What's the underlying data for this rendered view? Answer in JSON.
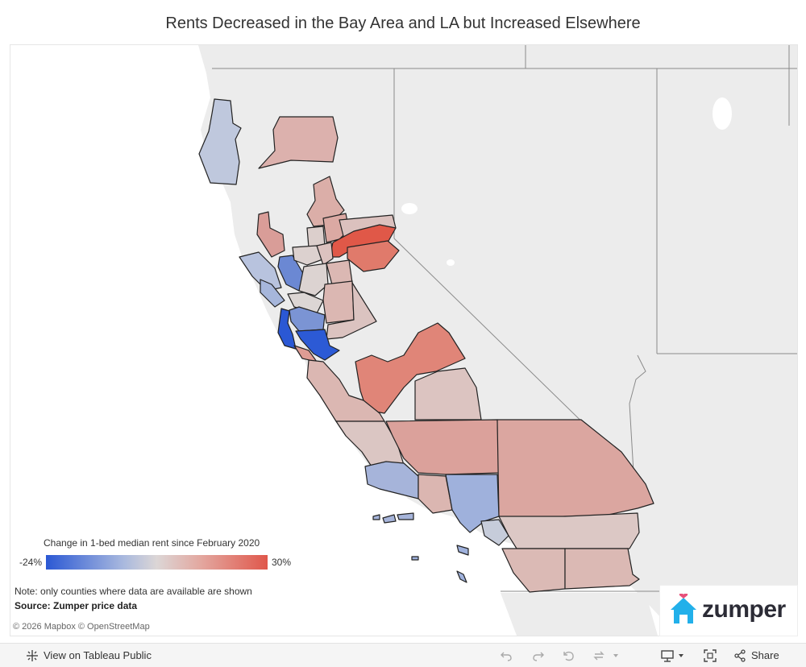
{
  "title": "Rents Decreased in the Bay Area and LA but Increased Elsewhere",
  "legend": {
    "title": "Change in 1-bed median rent since February 2020",
    "min_label": "-24%",
    "max_label": "30%",
    "min_value": -24,
    "max_value": 30,
    "colors": [
      "#2b58d4",
      "#a9b9de",
      "#dcd6d6",
      "#e3a79f",
      "#e0574b"
    ]
  },
  "note": "Note: only counties where  data are available are shown",
  "source": "Source: Zumper price data",
  "attribution": "© 2026 Mapbox  © OpenStreetMap",
  "logo": {
    "text": "zumper",
    "icon": "house-heart-icon",
    "color": "#22b0ea"
  },
  "toolbar": {
    "view_label": "View on Tableau Public",
    "share_label": "Share",
    "icons": [
      "tableau-logo-icon",
      "undo-icon",
      "redo-icon",
      "revert-icon",
      "refresh-icon",
      "download-icon",
      "fullscreen-icon",
      "share-icon"
    ]
  }
}
